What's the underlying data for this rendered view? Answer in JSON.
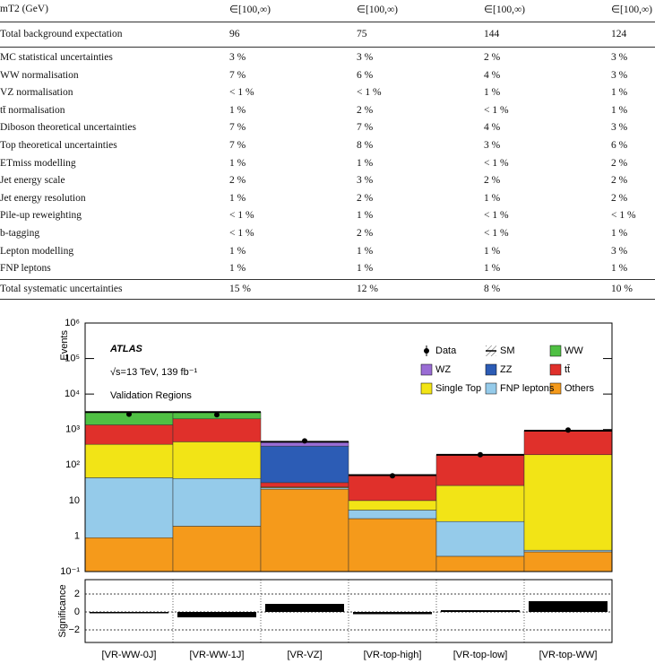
{
  "table": {
    "rows": [
      [
        "mT2 (GeV)",
        "∈[100,∞)",
        "∈[100,∞)",
        "∈[100,∞)",
        "∈[100,∞)"
      ],
      [
        "Total background expectation",
        "96",
        "75",
        "144",
        "124"
      ],
      [
        "MC statistical uncertainties",
        "3 %",
        "3 %",
        "2 %",
        "3 %"
      ],
      [
        "WW  normalisation",
        "7 %",
        "6 %",
        "4 %",
        "3 %"
      ],
      [
        "VZ  normalisation",
        "< 1 %",
        "< 1 %",
        "1 %",
        "1 %"
      ],
      [
        "tt̄  normalisation",
        "1 %",
        "2 %",
        "< 1 %",
        "1 %"
      ],
      [
        "Diboson theoretical uncertainties",
        "7 %",
        "7 %",
        "4 %",
        "3 %"
      ],
      [
        "Top theoretical uncertainties",
        "7 %",
        "8 %",
        "3 %",
        "6 %"
      ],
      [
        "ETmiss  modelling",
        "1 %",
        "1 %",
        "< 1 %",
        "2 %"
      ],
      [
        "Jet energy scale",
        "2 %",
        "3 %",
        "2 %",
        "2 %"
      ],
      [
        "Jet energy resolution",
        "1 %",
        "2 %",
        "1 %",
        "2 %"
      ],
      [
        "Pile-up reweighting",
        "< 1 %",
        "1 %",
        "< 1 %",
        "< 1 %"
      ],
      [
        "b-tagging",
        "< 1 %",
        "2 %",
        "< 1 %",
        "1 %"
      ],
      [
        "Lepton modelling",
        "1 %",
        "1 %",
        "1 %",
        "3 %"
      ],
      [
        "FNP leptons",
        "1 %",
        "1 %",
        "1 %",
        "1 %"
      ],
      [
        "Total systematic uncertainties",
        "15 %",
        "12 %",
        "8 %",
        "10 %"
      ]
    ]
  },
  "chart_data": {
    "type": "stacked_histogram",
    "ylabel": "Events",
    "log_scale": true,
    "annotations": [
      "ATLAS",
      "√s=13 TeV, 139 fb⁻¹",
      "Validation Regions"
    ],
    "categories": [
      "[VR-WW-0J]",
      "[VR-WW-1J]",
      "[VR-VZ]",
      "[VR-top-high]",
      "[VR-top-low]",
      "[VR-top-WW]"
    ],
    "ylim": [
      0.1,
      1000000
    ],
    "yticks": [
      {
        "value": 0.1,
        "label": "10⁻¹"
      },
      1,
      10,
      {
        "value": 100,
        "label": "10²"
      },
      {
        "value": 1000,
        "label": "10³"
      },
      {
        "value": 10000,
        "label": "10⁴"
      },
      {
        "value": 100000,
        "label": "10⁵"
      },
      {
        "value": 1000000,
        "label": "10⁶"
      }
    ],
    "series": [
      {
        "name": "Others",
        "color": "#f59a1b",
        "values": [
          0.9,
          1.9,
          21,
          3.1,
          0.27,
          0.36
        ]
      },
      {
        "name": "FNP leptons",
        "color": "#95cbea",
        "values": [
          43,
          40,
          2,
          2.3,
          2.3,
          0.04
        ]
      },
      {
        "name": "Single Top",
        "color": "#f2e416",
        "values": [
          340,
          410,
          1,
          4.6,
          24,
          195
        ]
      },
      {
        "name": "tt̄",
        "color": "#e0302b",
        "values": [
          970,
          1550,
          8,
          42,
          168,
          735
        ]
      },
      {
        "name": "ZZ",
        "color": "#2c5cb5",
        "values": [
          0,
          0,
          310,
          0,
          0,
          0
        ]
      },
      {
        "name": "WZ",
        "color": "#9a6dd5",
        "values": [
          0,
          0,
          110,
          0,
          0,
          0
        ]
      },
      {
        "name": "WW",
        "color": "#4fc043",
        "values": [
          1750,
          1100,
          1,
          0,
          0,
          0
        ]
      }
    ],
    "data": {
      "name": "Data",
      "values": [
        2700,
        2600,
        480,
        50,
        195,
        970
      ]
    },
    "sm": {
      "name": "SM"
    },
    "significance": {
      "ylabel": "Significance",
      "ylim": [
        -3.4,
        3.6
      ],
      "yticks": [
        {
          "value": -2,
          "label": "−2"
        },
        0,
        2
      ],
      "grid": true,
      "values": [
        -0.15,
        -0.6,
        0.9,
        -0.25,
        0.2,
        1.2
      ]
    }
  }
}
